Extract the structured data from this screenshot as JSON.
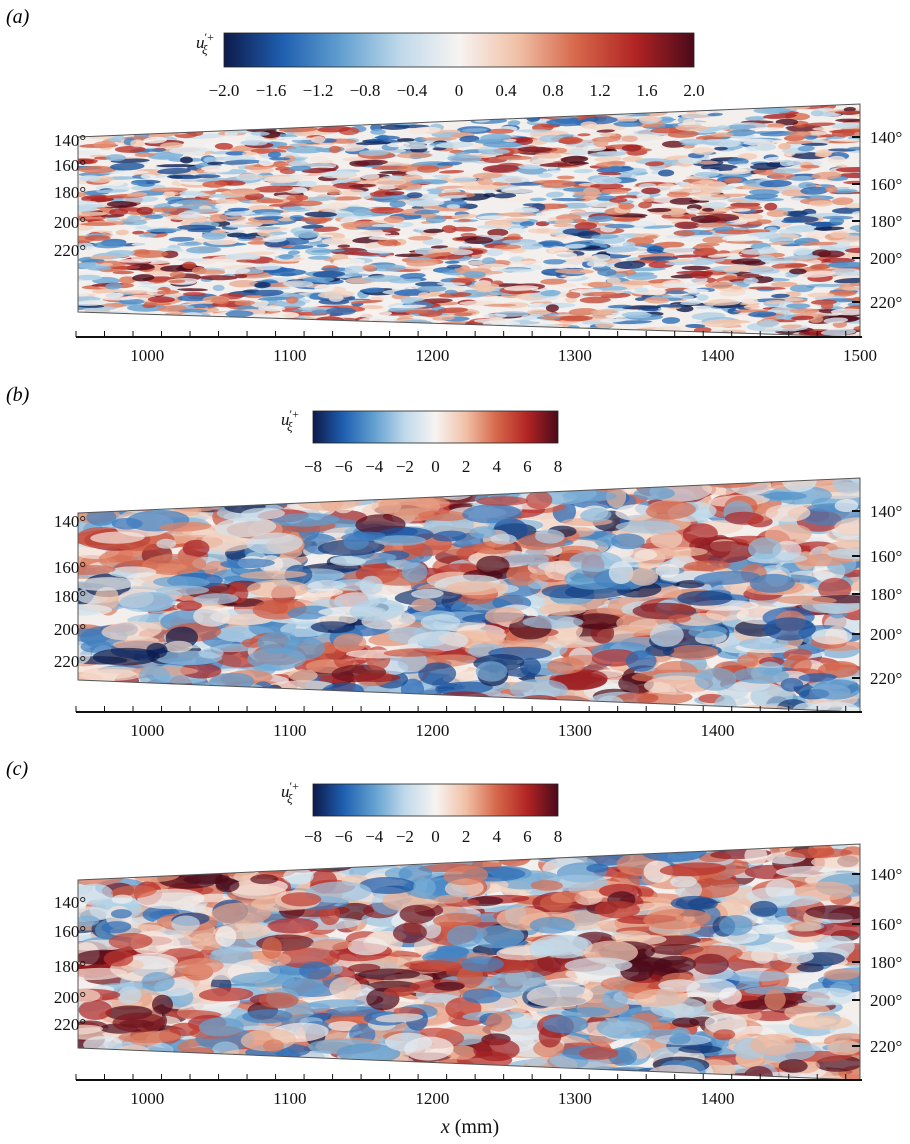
{
  "figure": {
    "xlabel_var": "x",
    "xlabel_unit": " (mm)"
  },
  "chart_data": [
    {
      "type": "heatmap",
      "panel_label": "(a)",
      "colorbar": {
        "label_main": "u",
        "label_sup": "′+",
        "label_sub": "ξ",
        "range": [
          -2.0,
          2.0
        ],
        "ticks": [
          "−2.0",
          "−1.6",
          "−1.2",
          "−0.8",
          "−0.4",
          "0",
          "0.4",
          "0.8",
          "1.2",
          "1.6",
          "2.0"
        ],
        "colormap": [
          "#0d1a4a",
          "#1f5fb0",
          "#62a0d0",
          "#bfd9ea",
          "#f7f4f2",
          "#f0c0a6",
          "#d6674a",
          "#b22424",
          "#4a0a1a"
        ]
      },
      "x_ticks": [
        "1000",
        "1100",
        "1200",
        "1300",
        "1400",
        "1500"
      ],
      "x_range": [
        950,
        1500
      ],
      "y_ticks_left": [
        "140°",
        "160°",
        "180°",
        "200°",
        "220°"
      ],
      "y_ticks_right": [
        "140°",
        "160°",
        "180°",
        "200°",
        "220°"
      ],
      "texture": "fine"
    },
    {
      "type": "heatmap",
      "panel_label": "(b)",
      "colorbar": {
        "label_main": "u",
        "label_sup": "′+",
        "label_sub": "ξ",
        "range": [
          -8,
          8
        ],
        "ticks": [
          "−8",
          "−6",
          "−4",
          "−2",
          "0",
          "2",
          "4",
          "6",
          "8"
        ],
        "colormap": [
          "#0d1a4a",
          "#1f5fb0",
          "#62a0d0",
          "#bfd9ea",
          "#f7f4f2",
          "#f0c0a6",
          "#d6674a",
          "#b22424",
          "#4a0a1a"
        ]
      },
      "x_ticks": [
        "1000",
        "1100",
        "1200",
        "1300",
        "1400"
      ],
      "x_range": [
        950,
        1500
      ],
      "y_ticks_left": [
        "140°",
        "160°",
        "180°",
        "200°",
        "220°"
      ],
      "y_ticks_right": [
        "140°",
        "160°",
        "180°",
        "200°",
        "220°"
      ],
      "texture": "coarse"
    },
    {
      "type": "heatmap",
      "panel_label": "(c)",
      "colorbar": {
        "label_main": "u",
        "label_sup": "′+",
        "label_sub": "ξ",
        "range": [
          -8,
          8
        ],
        "ticks": [
          "−8",
          "−6",
          "−4",
          "−2",
          "0",
          "2",
          "4",
          "6",
          "8"
        ],
        "colormap": [
          "#0d1a4a",
          "#1f5fb0",
          "#62a0d0",
          "#bfd9ea",
          "#f7f4f2",
          "#f0c0a6",
          "#d6674a",
          "#b22424",
          "#4a0a1a"
        ]
      },
      "x_ticks": [
        "1000",
        "1100",
        "1200",
        "1300",
        "1400"
      ],
      "x_range": [
        950,
        1500
      ],
      "y_ticks_left": [
        "140°",
        "160°",
        "180°",
        "200°",
        "220°"
      ],
      "y_ticks_right": [
        "140°",
        "160°",
        "180°",
        "200°",
        "220°"
      ],
      "texture": "coarse-red"
    }
  ]
}
